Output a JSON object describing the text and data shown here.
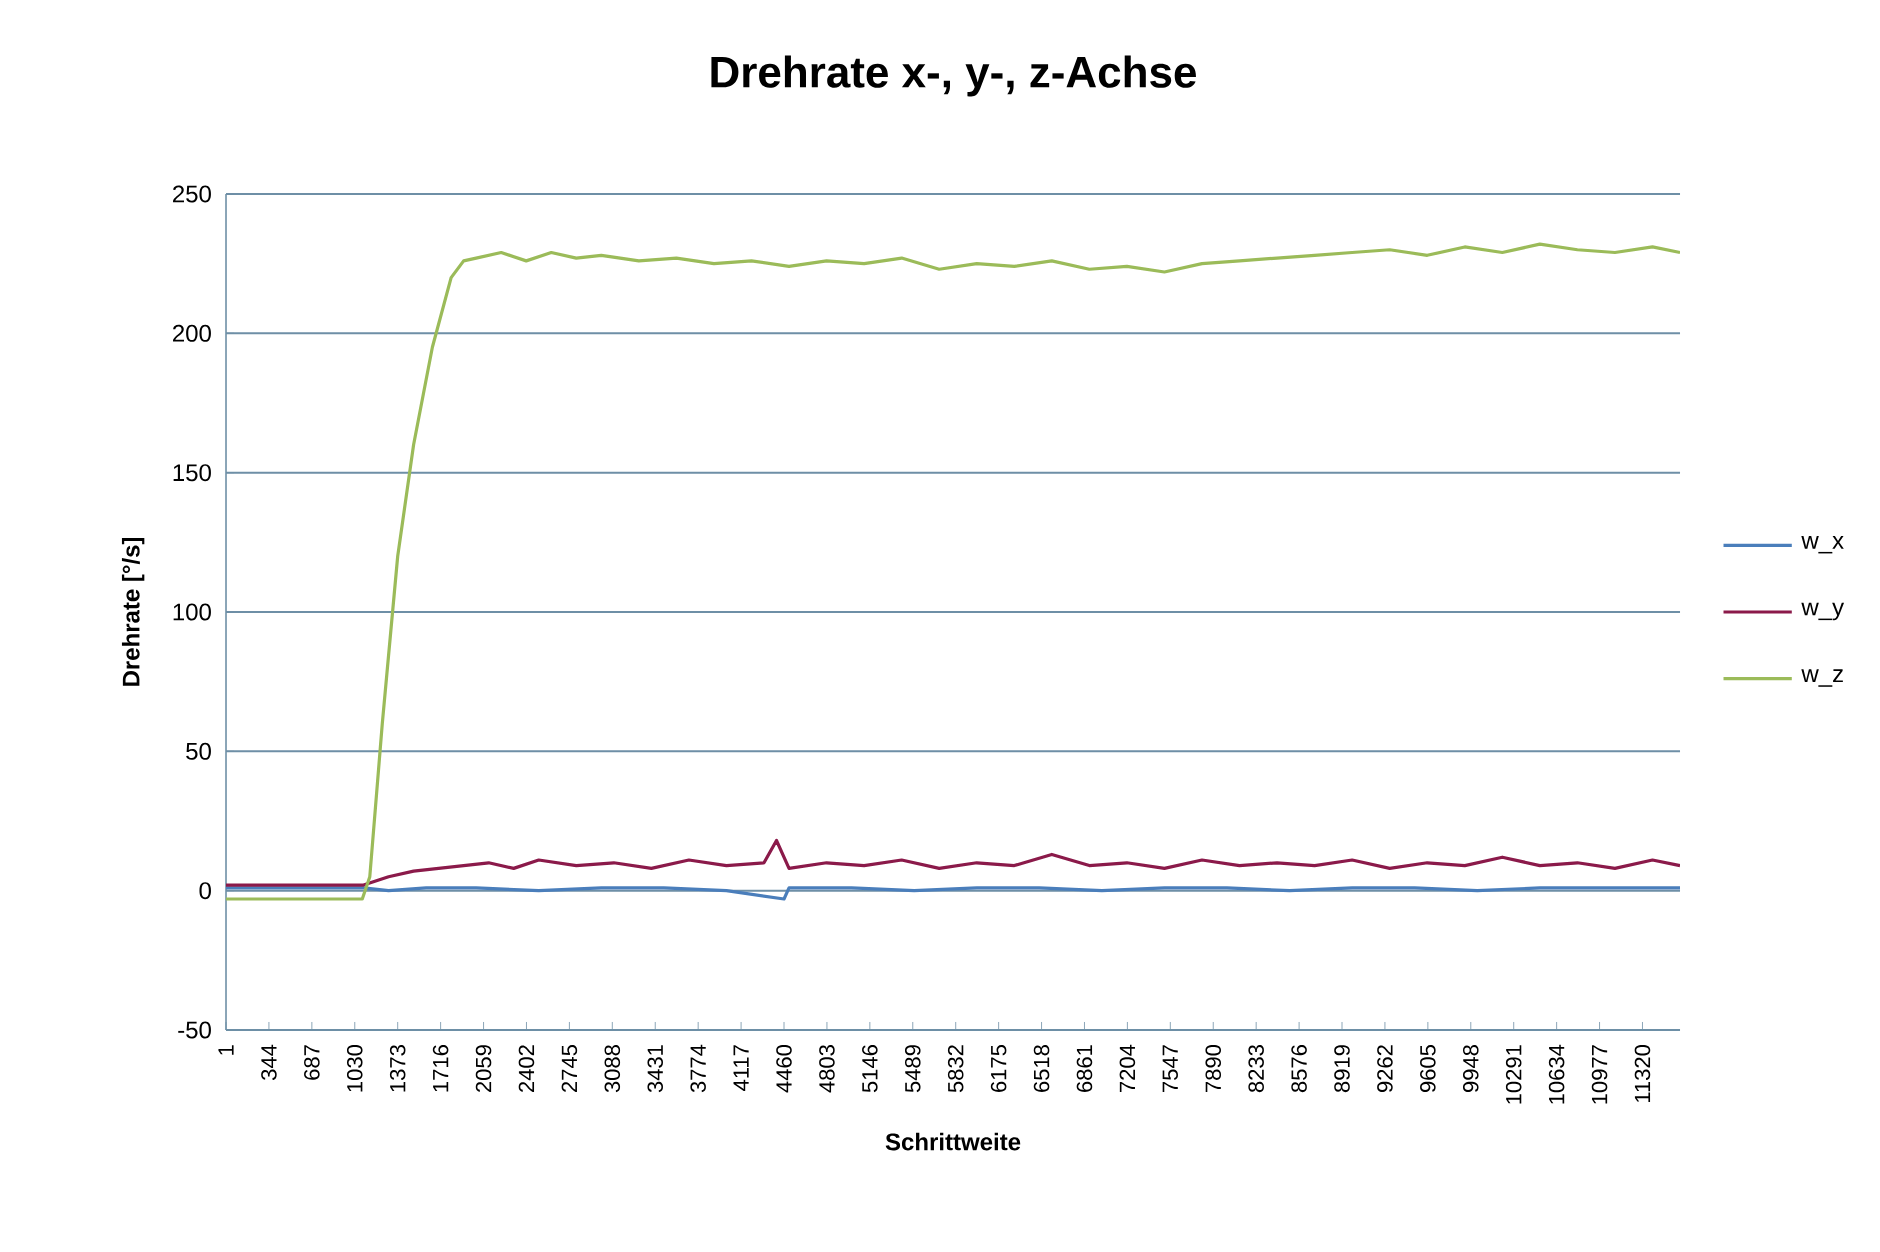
{
  "chart_data": {
    "type": "line",
    "title": "Drehrate x-, y-, z-Achse",
    "xlabel": "Schrittweite",
    "ylabel": "Drehrate [°/s]",
    "xlim": [
      1,
      11620
    ],
    "ylim": [
      -50,
      250
    ],
    "xticks": [
      1,
      344,
      687,
      1030,
      1373,
      1716,
      2059,
      2402,
      2745,
      3088,
      3431,
      3774,
      4117,
      4460,
      4803,
      5146,
      5489,
      5832,
      6175,
      6518,
      6861,
      7204,
      7547,
      7890,
      8233,
      8576,
      8919,
      9262,
      9605,
      9948,
      10291,
      10634,
      10977,
      11320
    ],
    "yticks": [
      -50,
      0,
      50,
      100,
      150,
      200,
      250
    ],
    "grid": "y",
    "legend": "right",
    "marker": "none",
    "line_style": "solid",
    "series": [
      {
        "name": "w_x",
        "color": "#4a7ebb",
        "x": [
          1,
          1000,
          1100,
          1300,
          1600,
          2000,
          2500,
          3000,
          3500,
          4000,
          4460,
          4500,
          5000,
          5500,
          6000,
          6500,
          7000,
          7500,
          8000,
          8500,
          9000,
          9500,
          10000,
          10500,
          11000,
          11620
        ],
        "values": [
          1,
          1,
          1,
          0,
          1,
          1,
          0,
          1,
          1,
          0,
          -3,
          1,
          1,
          0,
          1,
          1,
          0,
          1,
          1,
          0,
          1,
          1,
          0,
          1,
          1,
          1
        ]
      },
      {
        "name": "w_y",
        "color": "#8b1a4a",
        "x": [
          1,
          500,
          1000,
          1100,
          1300,
          1500,
          1700,
          1900,
          2100,
          2300,
          2500,
          2800,
          3100,
          3400,
          3700,
          4000,
          4300,
          4400,
          4500,
          4800,
          5100,
          5400,
          5700,
          6000,
          6300,
          6600,
          6900,
          7200,
          7500,
          7800,
          8100,
          8400,
          8700,
          9000,
          9300,
          9600,
          9900,
          10200,
          10500,
          10800,
          11100,
          11400,
          11620
        ],
        "values": [
          2,
          2,
          2,
          2,
          5,
          7,
          8,
          9,
          10,
          8,
          11,
          9,
          10,
          8,
          11,
          9,
          10,
          18,
          8,
          10,
          9,
          11,
          8,
          10,
          9,
          13,
          9,
          10,
          8,
          11,
          9,
          10,
          9,
          11,
          8,
          10,
          9,
          12,
          9,
          10,
          8,
          11,
          9
        ]
      },
      {
        "name": "w_z",
        "color": "#9bbb59",
        "x": [
          1,
          500,
          1000,
          1090,
          1150,
          1250,
          1373,
          1500,
          1650,
          1800,
          1900,
          2000,
          2200,
          2400,
          2600,
          2800,
          3000,
          3300,
          3600,
          3900,
          4200,
          4500,
          4800,
          5100,
          5400,
          5700,
          6000,
          6300,
          6600,
          6900,
          7200,
          7500,
          7800,
          8100,
          8400,
          8700,
          9000,
          9300,
          9600,
          9900,
          10200,
          10500,
          10800,
          11100,
          11400,
          11620
        ],
        "values": [
          -3,
          -3,
          -3,
          -3,
          5,
          60,
          120,
          160,
          195,
          220,
          226,
          227,
          229,
          226,
          229,
          227,
          228,
          226,
          227,
          225,
          226,
          224,
          226,
          225,
          227,
          223,
          225,
          224,
          226,
          223,
          224,
          222,
          225,
          226,
          227,
          228,
          229,
          230,
          228,
          231,
          229,
          232,
          230,
          229,
          231,
          229
        ]
      }
    ]
  }
}
